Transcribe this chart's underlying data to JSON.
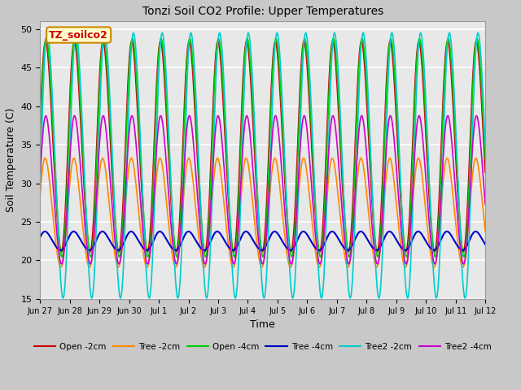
{
  "title": "Tonzi Soil CO2 Profile: Upper Temperatures",
  "ylabel": "Soil Temperature (C)",
  "xlabel": "Time",
  "ylim": [
    15,
    51
  ],
  "yticks": [
    15,
    20,
    25,
    30,
    35,
    40,
    45,
    50
  ],
  "label_box_text": "TZ_soilco2",
  "series_order": [
    "Open -2cm",
    "Tree -2cm",
    "Open -4cm",
    "Tree -4cm",
    "Tree2 -2cm",
    "Tree2 -4cm"
  ],
  "series": {
    "Open -2cm": {
      "color": "#cc0000",
      "lw": 1.2,
      "base": 34.5,
      "amp": 13.5,
      "phase": 0.25
    },
    "Tree -2cm": {
      "color": "#ff8800",
      "lw": 1.2,
      "base": 26.0,
      "amp": 7.0,
      "phase": 0.35
    },
    "Open -4cm": {
      "color": "#00cc00",
      "lw": 1.2,
      "base": 34.5,
      "amp": 14.0,
      "phase": 0.1
    },
    "Tree -4cm": {
      "color": "#0000cc",
      "lw": 1.5,
      "base": 22.5,
      "amp": 1.2,
      "phase": 0.4
    },
    "Tree2 -2cm": {
      "color": "#00cccc",
      "lw": 1.2,
      "base": 32.5,
      "amp": 17.0,
      "phase": -0.15
    },
    "Tree2 -4cm": {
      "color": "#cc00cc",
      "lw": 1.2,
      "base": 29.0,
      "amp": 9.5,
      "phase": 0.2
    }
  },
  "xtick_labels": [
    "Jun 27",
    "Jun 28",
    "Jun 29",
    "Jun 30",
    "Jul 1",
    "Jul 2",
    "Jul 3",
    "Jul 4",
    "Jul 5",
    "Jul 6",
    "Jul 7",
    "Jul 8",
    "Jul 9",
    "Jul 10",
    "Jul 11",
    "Jul 12"
  ],
  "n_days": 15.5,
  "samples_per_day": 96,
  "fig_bg_color": "#c8c8c8",
  "plot_bg_color": "#e8e8e8",
  "grid_color": "#ffffff",
  "grid_lw": 1.2,
  "figsize": [
    6.4,
    4.8
  ],
  "dpi": 100
}
